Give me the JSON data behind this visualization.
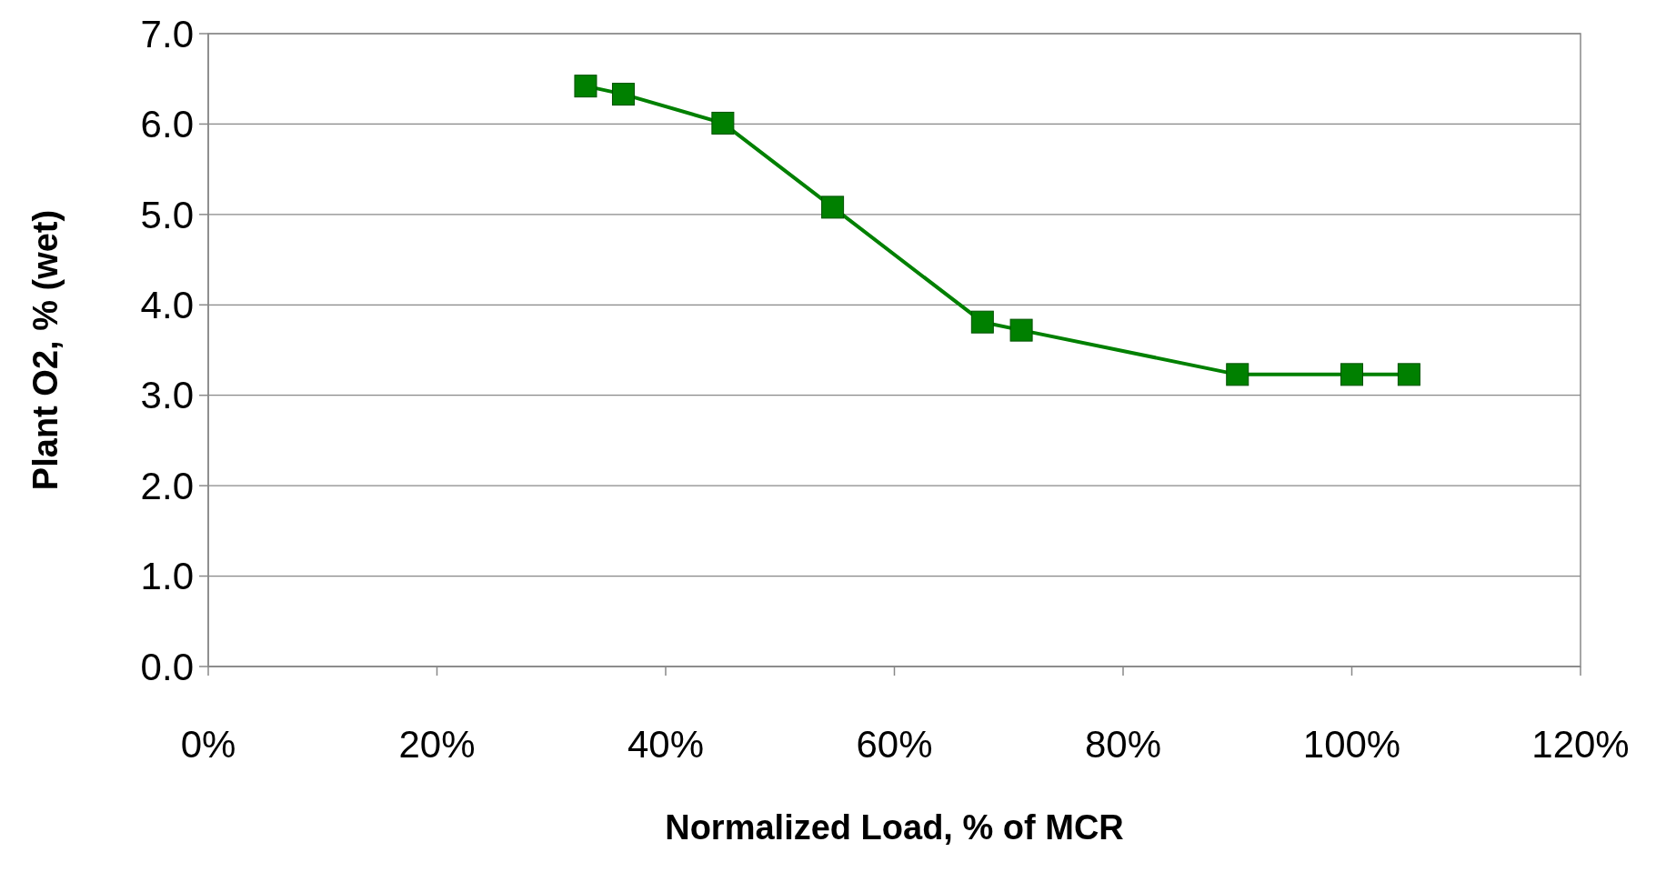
{
  "chart_data": {
    "type": "line",
    "xlabel": "Normalized Load, % of MCR",
    "ylabel": "Plant O2, % (wet)",
    "series": [
      {
        "color": "#008000",
        "x": [
          33.0,
          36.3,
          45.0,
          54.6,
          67.7,
          71.1,
          90.0,
          100.0,
          105.0
        ],
        "values": [
          6.42,
          6.33,
          6.01,
          5.08,
          3.81,
          3.72,
          3.23,
          3.23,
          3.23
        ]
      }
    ],
    "xlim": [
      0,
      120
    ],
    "xticks": [
      {
        "value": 0,
        "label": "0%"
      },
      {
        "value": 20,
        "label": "20%"
      },
      {
        "value": 40,
        "label": "40%"
      },
      {
        "value": 60,
        "label": "60%"
      },
      {
        "value": 80,
        "label": "80%"
      },
      {
        "value": 100,
        "label": "100%"
      },
      {
        "value": 120,
        "label": "120%"
      }
    ],
    "ylim": [
      0,
      7
    ],
    "yticks": [
      {
        "value": 0,
        "label": "0.0"
      },
      {
        "value": 1,
        "label": "1.0"
      },
      {
        "value": 2,
        "label": "2.0"
      },
      {
        "value": 3,
        "label": "3.0"
      },
      {
        "value": 4,
        "label": "4.0"
      },
      {
        "value": 5,
        "label": "5.0"
      },
      {
        "value": 6,
        "label": "6.0"
      },
      {
        "value": 7,
        "label": "7.0"
      }
    ],
    "grid": "y",
    "marker": "square",
    "line_style": "solid"
  }
}
